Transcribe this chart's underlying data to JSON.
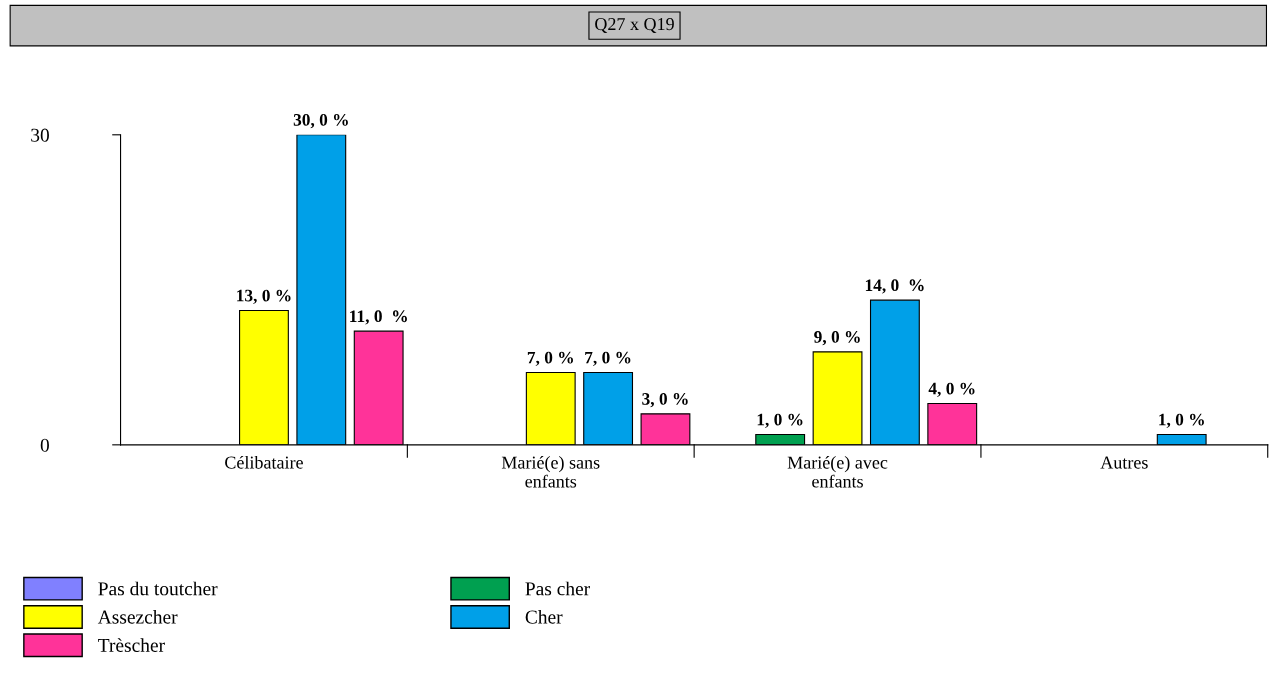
{
  "chart_data": {
    "type": "bar",
    "title": "Q27 x Q19",
    "categories": [
      "Célibataire",
      "Marié(e) sans enfants",
      "Marié(e) avec enfants",
      "Autres"
    ],
    "series": [
      {
        "name": "Pas du toutcher",
        "color": "#8080ff",
        "values": [
          null,
          null,
          null,
          null
        ],
        "value_labels": [
          null,
          null,
          null,
          null
        ]
      },
      {
        "name": "Pas cher",
        "color": "#00a050",
        "values": [
          null,
          null,
          1,
          null
        ],
        "value_labels": [
          null,
          null,
          "1, 0 %",
          null
        ]
      },
      {
        "name": "Assezcher",
        "color": "#ffff00",
        "values": [
          13,
          7,
          9,
          null
        ],
        "value_labels": [
          "13, 0 %",
          "7, 0 %",
          "9, 0 %",
          null
        ]
      },
      {
        "name": "Cher",
        "color": "#00a0e8",
        "values": [
          30,
          7,
          14,
          1
        ],
        "value_labels": [
          "30, 0 %",
          "7, 0 %",
          "14, 0  %",
          "1, 0 %"
        ]
      },
      {
        "name": "Trèscher",
        "color": "#ff3399",
        "values": [
          11,
          3,
          4,
          null
        ],
        "value_labels": [
          "11, 0  %",
          "3, 0 %",
          "4, 0 %",
          null
        ]
      }
    ],
    "ylim": [
      0,
      30
    ],
    "yticks": [
      0,
      30
    ],
    "grid": false,
    "legend": "bottom left"
  }
}
